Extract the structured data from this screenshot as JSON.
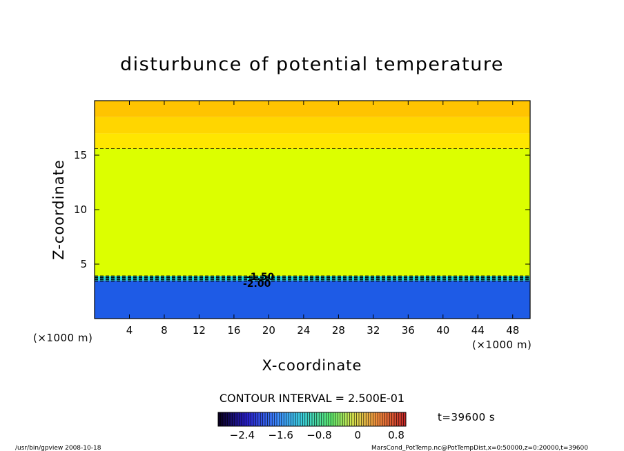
{
  "chart_data": {
    "type": "heatmap",
    "title": "disturbunce of potential temperature",
    "xlabel": "X-coordinate",
    "ylabel": "Z-coordinate",
    "x_unit": "(×1000 m)",
    "y_unit": "(×1000 m)",
    "xlim": [
      0,
      50
    ],
    "ylim": [
      0,
      20
    ],
    "xticks": [
      4,
      8,
      12,
      16,
      20,
      24,
      28,
      32,
      36,
      40,
      44,
      48
    ],
    "yticks": [
      5,
      10,
      15
    ],
    "contour_interval_label": "CONTOUR INTERVAL = 2.500E-01",
    "time_label": "t=39600 s",
    "colorbar": {
      "range": [
        -2.9,
        1.0
      ],
      "tick_values": [
        -2.4,
        -1.6,
        -0.8,
        0,
        0.8
      ],
      "tick_labels": [
        "−2.4",
        "−1.6",
        "−0.8",
        "0",
        "0.8"
      ]
    },
    "contour_labels": [
      "-1.50",
      "-2.00"
    ],
    "bands": [
      {
        "z_from": 0,
        "z_to": 3.5,
        "value": -2.45,
        "color": "#1e5be6"
      },
      {
        "z_from": 3.5,
        "z_to": 3.9,
        "value": -1.0,
        "color": "#1fd6d6"
      },
      {
        "z_from": 3.9,
        "z_to": 15.6,
        "value": 0.1,
        "color": "#dcff00"
      },
      {
        "z_from": 15.6,
        "z_to": 17.0,
        "value": 0.35,
        "color": "#ffe600"
      },
      {
        "z_from": 17.0,
        "z_to": 18.5,
        "value": 0.5,
        "color": "#ffd600"
      },
      {
        "z_from": 18.5,
        "z_to": 20,
        "value": 0.6,
        "color": "#ffc400"
      }
    ],
    "dashed_contour_levels_z": [
      15.6,
      3.45,
      3.6,
      3.75,
      3.9
    ]
  },
  "footer": {
    "left": "/usr/bin/gpview   2008-10-18",
    "right": "MarsCond_PotTemp.nc@PotTempDist,x=0:50000,z=0:20000,t=39600"
  },
  "colors": {
    "low": "#1e5be6",
    "mid": "#dcff00",
    "high": "#ffc400"
  }
}
